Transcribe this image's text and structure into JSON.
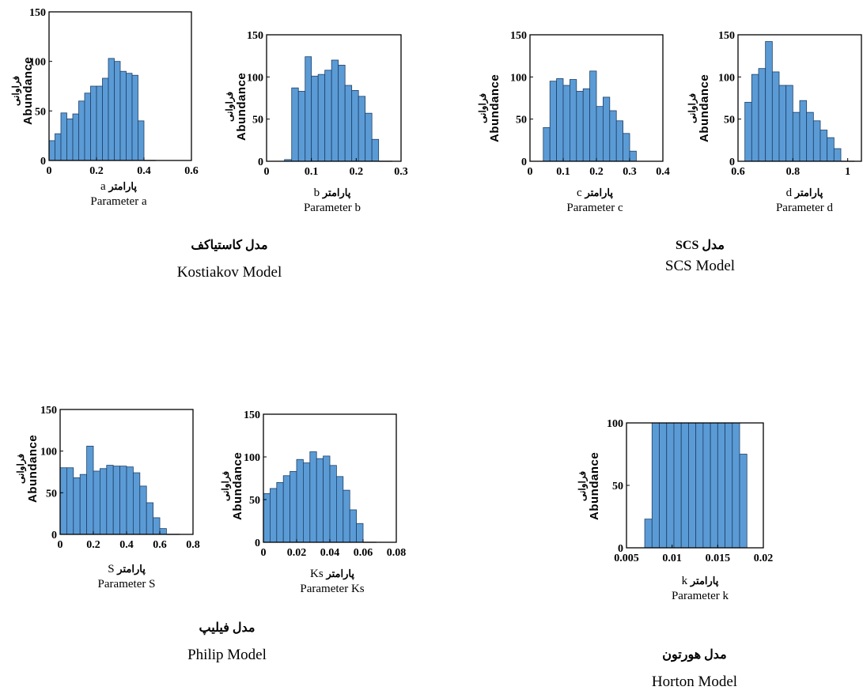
{
  "charts": [
    {
      "id": "a",
      "ylabel_fa": "فراوانی",
      "ylabel_en": "Abundance",
      "xlabel_var": "a",
      "xlabel_fa": "پارامتر",
      "xlabel_en": "Parameter a"
    },
    {
      "id": "b",
      "ylabel_fa": "فراوانی",
      "ylabel_en": "Abundance",
      "xlabel_var": "b",
      "xlabel_fa": "پارامتر",
      "xlabel_en": "Parameter b"
    },
    {
      "id": "c",
      "ylabel_fa": "فراوانی",
      "ylabel_en": "Abundance",
      "xlabel_var": "c",
      "xlabel_fa": "پارامتر",
      "xlabel_en": "Parameter c"
    },
    {
      "id": "d",
      "ylabel_fa": "فراوانی",
      "ylabel_en": "Abundance",
      "xlabel_var": "d",
      "xlabel_fa": "پارامتر",
      "xlabel_en": "Parameter d"
    },
    {
      "id": "S",
      "ylabel_fa": "فراوانی",
      "ylabel_en": "Abundance",
      "xlabel_var": "S",
      "xlabel_fa": "پارامتر",
      "xlabel_en": "Parameter S"
    },
    {
      "id": "Ks",
      "ylabel_fa": "فراوانی",
      "ylabel_en": "Abundance",
      "xlabel_var": "Ks",
      "xlabel_fa": "پارامتر",
      "xlabel_en": "Parameter Ks"
    },
    {
      "id": "k",
      "ylabel_fa": "فراوانی",
      "ylabel_en": "Abundance",
      "xlabel_var": "k",
      "xlabel_fa": "پارامتر",
      "xlabel_en": "Parameter k"
    }
  ],
  "models": {
    "kostiakov": {
      "fa": "مدل کاستیاکف",
      "en": "Kostiakov Model"
    },
    "scs": {
      "fa": "مدل SCS",
      "en": "SCS Model"
    },
    "philip": {
      "fa": "مدل فیلیپ",
      "en": "Philip Model"
    },
    "horton": {
      "fa": "مدل هورتون",
      "en": "Horton Model"
    }
  },
  "colors": {
    "bar_fill": "#5b9bd5",
    "bar_edge": "#1f3f66",
    "axis": "#000000"
  },
  "chart_data": [
    {
      "id": "a",
      "type": "bar",
      "xlim": [
        0,
        0.6
      ],
      "ylim": [
        0,
        150
      ],
      "xticks": [
        "0",
        "0.2",
        "0.4",
        "0.6"
      ],
      "yticks": [
        "0",
        "50",
        "100",
        "150"
      ],
      "bin_edges": [
        0,
        0.025,
        0.05,
        0.075,
        0.1,
        0.125,
        0.15,
        0.175,
        0.2,
        0.225,
        0.25,
        0.275,
        0.3,
        0.325,
        0.35,
        0.375,
        0.4,
        0.425,
        0.45
      ],
      "values": [
        20,
        27,
        48,
        42,
        47,
        60,
        68,
        75,
        75,
        83,
        103,
        100,
        90,
        88,
        86,
        40,
        0,
        0
      ]
    },
    {
      "id": "b",
      "type": "bar",
      "xlim": [
        0,
        0.3
      ],
      "ylim": [
        0,
        150
      ],
      "xticks": [
        "0",
        "0.1",
        "0.2",
        "0.3"
      ],
      "yticks": [
        "0",
        "50",
        "100",
        "150"
      ],
      "bin_edges": [
        0.04,
        0.056,
        0.071,
        0.086,
        0.1,
        0.115,
        0.13,
        0.145,
        0.16,
        0.175,
        0.19,
        0.205,
        0.22,
        0.235,
        0.25,
        0.265,
        0.28
      ],
      "values": [
        2,
        87,
        83,
        124,
        101,
        103,
        108,
        120,
        114,
        90,
        84,
        77,
        57,
        26,
        0,
        0
      ]
    },
    {
      "id": "c",
      "type": "bar",
      "xlim": [
        0,
        0.4
      ],
      "ylim": [
        0,
        150
      ],
      "xticks": [
        "0",
        "0.1",
        "0.2",
        "0.3",
        "0.4"
      ],
      "yticks": [
        "0",
        "50",
        "100",
        "150"
      ],
      "bin_edges": [
        0.04,
        0.06,
        0.08,
        0.1,
        0.12,
        0.14,
        0.16,
        0.18,
        0.2,
        0.22,
        0.24,
        0.26,
        0.28,
        0.3,
        0.32
      ],
      "values": [
        40,
        95,
        98,
        90,
        97,
        83,
        86,
        107,
        65,
        76,
        60,
        48,
        33,
        12
      ]
    },
    {
      "id": "d",
      "type": "bar",
      "xlim": [
        0.6,
        1.05
      ],
      "ylim": [
        0,
        150
      ],
      "xticks": [
        "0.6",
        "0.8",
        "1"
      ],
      "yticks": [
        "0",
        "50",
        "100",
        "150"
      ],
      "bin_edges": [
        0.625,
        0.65,
        0.675,
        0.7,
        0.725,
        0.75,
        0.775,
        0.8,
        0.825,
        0.85,
        0.875,
        0.9,
        0.925,
        0.95,
        0.975,
        1,
        1.025
      ],
      "values": [
        70,
        103,
        110,
        142,
        106,
        90,
        90,
        58,
        72,
        58,
        48,
        37,
        28,
        15,
        0,
        0
      ]
    },
    {
      "id": "S",
      "type": "bar",
      "xlim": [
        0,
        0.8
      ],
      "ylim": [
        0,
        150
      ],
      "xticks": [
        "0",
        "0.2",
        "0.4",
        "0.6",
        "0.8"
      ],
      "yticks": [
        "0",
        "50",
        "100",
        "150"
      ],
      "bin_edges": [
        0,
        0.04,
        0.08,
        0.12,
        0.16,
        0.2,
        0.24,
        0.28,
        0.32,
        0.36,
        0.4,
        0.44,
        0.48,
        0.52,
        0.56,
        0.6,
        0.64,
        0.68,
        0.72
      ],
      "values": [
        80,
        80,
        68,
        72,
        106,
        76,
        79,
        83,
        82,
        82,
        81,
        74,
        58,
        38,
        20,
        7,
        0,
        0
      ]
    },
    {
      "id": "Ks",
      "type": "bar",
      "xlim": [
        0,
        0.08
      ],
      "ylim": [
        0,
        150
      ],
      "xticks": [
        "0",
        "0.02",
        "0.04",
        "0.06",
        "0.08"
      ],
      "yticks": [
        "0",
        "50",
        "100",
        "150"
      ],
      "bin_edges": [
        0,
        0.004,
        0.008,
        0.012,
        0.016,
        0.02,
        0.024,
        0.028,
        0.032,
        0.036,
        0.04,
        0.044,
        0.048,
        0.052,
        0.056,
        0.06,
        0.064,
        0.068
      ],
      "values": [
        57,
        63,
        70,
        78,
        83,
        97,
        93,
        106,
        98,
        101,
        90,
        77,
        61,
        38,
        22,
        0,
        0
      ]
    },
    {
      "id": "k",
      "type": "bar",
      "xlim": [
        0.005,
        0.02
      ],
      "ylim": [
        0,
        100
      ],
      "xticks": [
        "0.005",
        "0.01",
        "0.015",
        "0.02"
      ],
      "yticks": [
        "0",
        "50",
        "100"
      ],
      "bin_edges": [
        0.007,
        0.0078,
        0.0086,
        0.0094,
        0.0102,
        0.011,
        0.0118,
        0.0126,
        0.0134,
        0.0142,
        0.015,
        0.0158,
        0.0166,
        0.0174,
        0.0182
      ],
      "values": [
        23,
        100,
        100,
        100,
        100,
        100,
        100,
        100,
        100,
        100,
        100,
        100,
        100,
        75
      ]
    }
  ]
}
